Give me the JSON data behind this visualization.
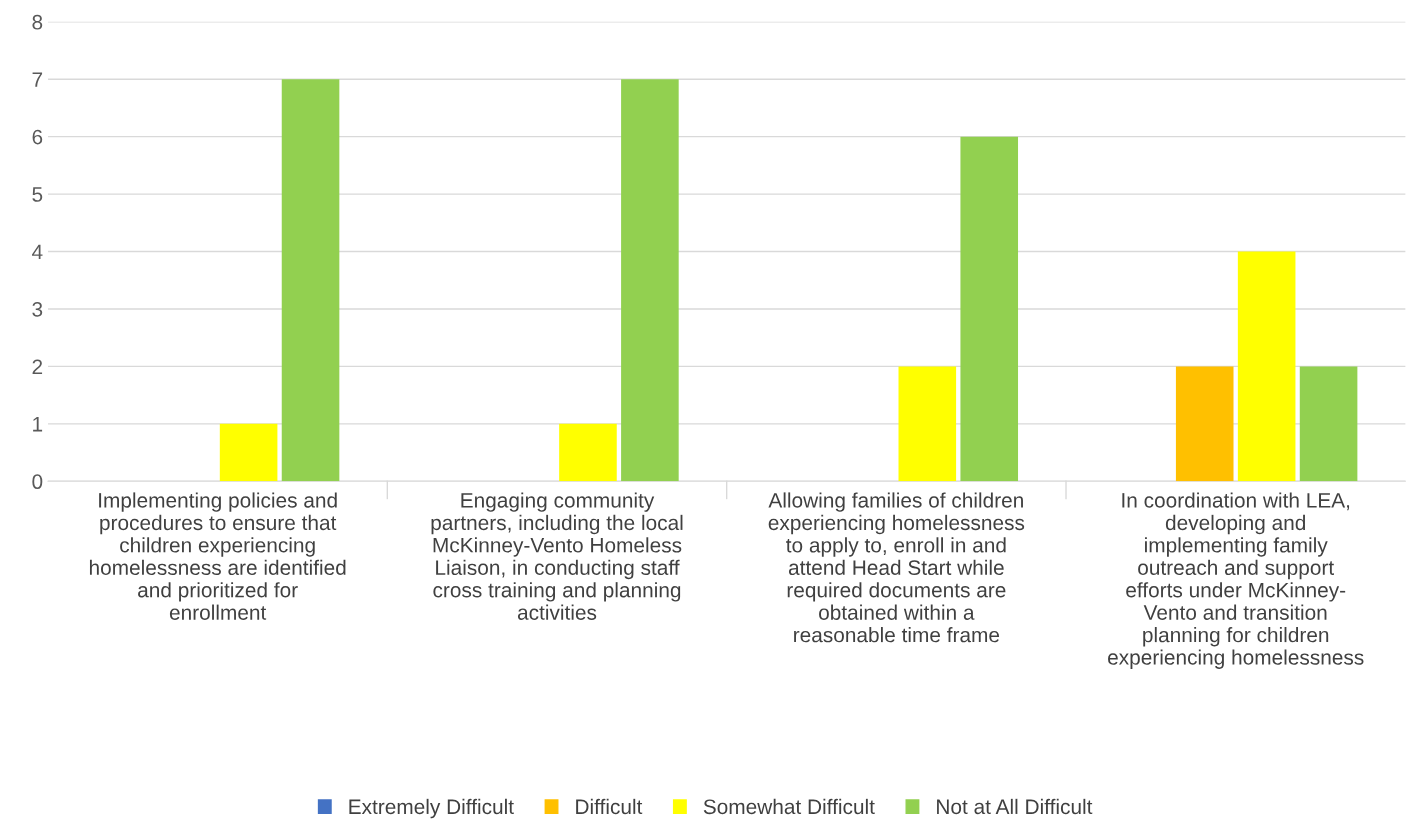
{
  "chart_data": {
    "type": "bar",
    "categories": [
      "Implementing policies and\nprocedures to ensure that\nchildren experiencing\nhomelessness are identified\nand prioritized for\nenrollment",
      "Engaging community\npartners, including the local\nMcKinney-Vento Homeless\nLiaison, in conducting staff\ncross training and planning\nactivities",
      "Allowing families of children\nexperiencing homelessness\nto apply to, enroll in and\nattend Head Start while\nrequired documents are\nobtained within a\nreasonable time frame",
      "In coordination with LEA,\ndeveloping and\nimplementing family\noutreach and support\nefforts under McKinney-\nVento and transition\nplanning for children\nexperiencing homelessness"
    ],
    "series": [
      {
        "name": "Extremely Difficult",
        "color": "#4472c4",
        "values": [
          0,
          0,
          0,
          0
        ]
      },
      {
        "name": "Difficult",
        "color": "#ffc000",
        "values": [
          0,
          0,
          0,
          2
        ]
      },
      {
        "name": "Somewhat Difficult",
        "color": "#ffff00",
        "values": [
          1,
          1,
          2,
          4
        ]
      },
      {
        "name": "Not at All Difficult",
        "color": "#92d050",
        "values": [
          7,
          7,
          6,
          2
        ]
      }
    ],
    "ylim": [
      0,
      8
    ],
    "yticks": [
      0,
      1,
      2,
      3,
      4,
      5,
      6,
      7,
      8
    ],
    "grid": "y",
    "legend": "bottom"
  }
}
